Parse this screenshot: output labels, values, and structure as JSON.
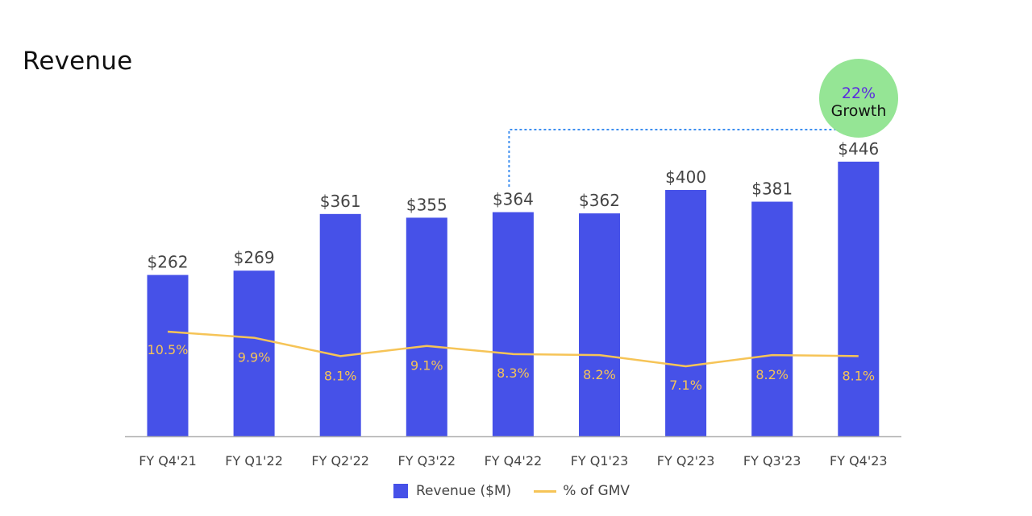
{
  "title": "Revenue",
  "colors": {
    "bar": "#4651E8",
    "line": "#F6C457",
    "axis": "#B0B0B0",
    "bar_label": "#444444",
    "growth_bubble": "#95E595",
    "growth_pct": "#5B2BE0",
    "dotted": "#3D8EF0"
  },
  "growth": {
    "pct": "22%",
    "label": "Growth"
  },
  "legend": {
    "bar_label": "Revenue ($M)",
    "line_label": "% of GMV"
  },
  "chart_data": {
    "type": "bar",
    "title": "Revenue",
    "xlabel": "",
    "ylabel": "",
    "categories": [
      "FY Q4'21",
      "FY Q1'22",
      "FY Q2'22",
      "FY Q3'22",
      "FY Q4'22",
      "FY Q1'23",
      "FY Q2'23",
      "FY Q3'23",
      "FY Q4'23"
    ],
    "series": [
      {
        "name": "Revenue ($M)",
        "type": "bar",
        "values": [
          262,
          269,
          361,
          355,
          364,
          362,
          400,
          381,
          446
        ],
        "labels": [
          "$262",
          "$269",
          "$361",
          "$355",
          "$364",
          "$362",
          "$400",
          "$381",
          "$446"
        ]
      },
      {
        "name": "% of GMV",
        "type": "line",
        "values": [
          10.5,
          9.9,
          8.1,
          9.1,
          8.3,
          8.2,
          7.1,
          8.2,
          8.1
        ],
        "labels": [
          "10.5%",
          "9.9%",
          "8.1%",
          "9.1%",
          "8.3%",
          "8.2%",
          "7.1%",
          "8.2%",
          "8.1%"
        ]
      }
    ],
    "annotations": [
      {
        "text": "22% Growth",
        "from": "FY Q4'22",
        "to": "FY Q4'23"
      }
    ],
    "grid": false,
    "legend_position": "bottom"
  }
}
